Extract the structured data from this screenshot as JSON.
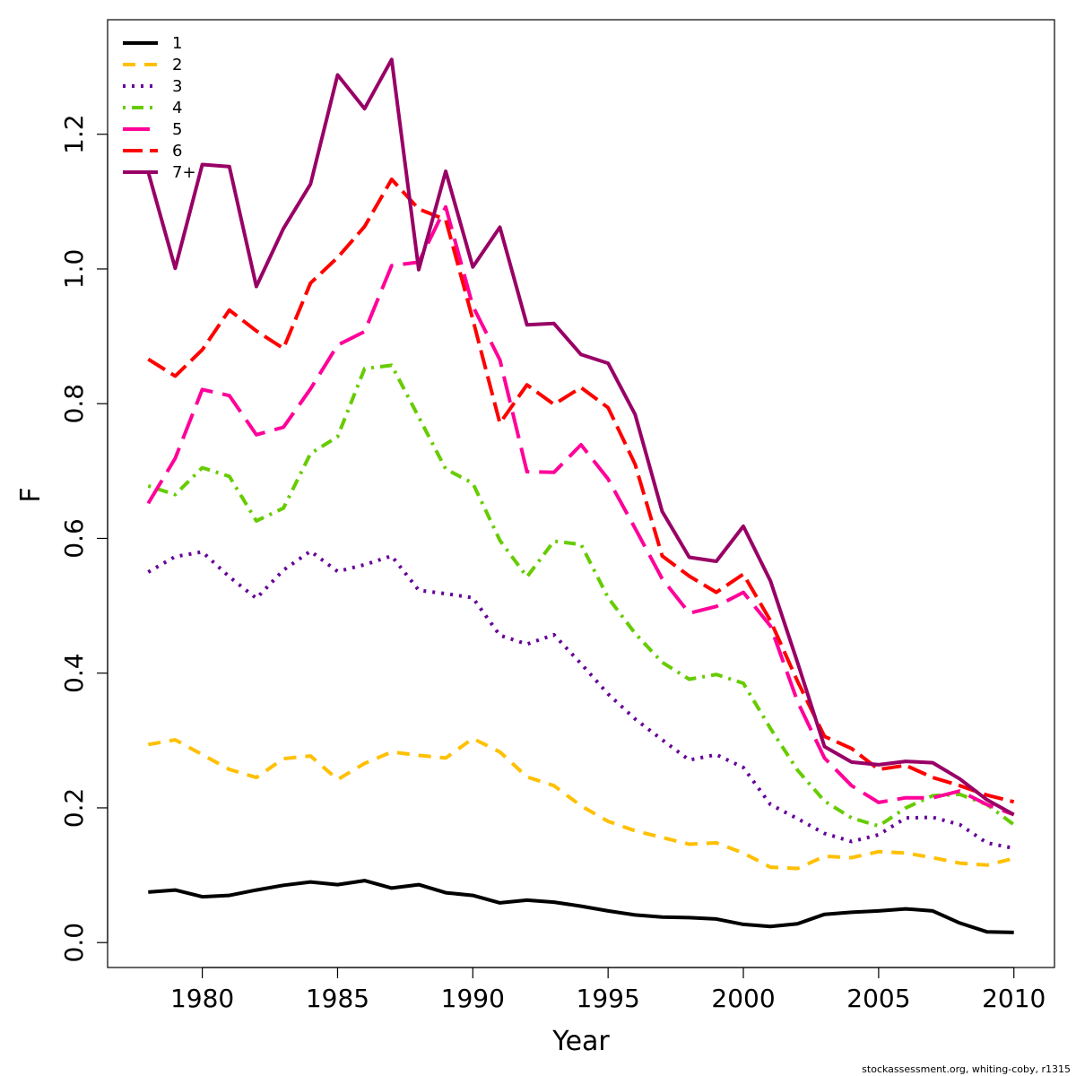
{
  "chart_data": {
    "type": "line",
    "xlabel": "Year",
    "ylabel": "F",
    "xlim": [
      1976.5,
      2011.5
    ],
    "ylim": [
      -0.037,
      1.37
    ],
    "xticks": [
      1980,
      1985,
      1990,
      1995,
      2000,
      2005,
      2010
    ],
    "yticks": [
      0.0,
      0.2,
      0.4,
      0.6,
      0.8,
      1.0,
      1.2
    ],
    "ytick_labels": [
      "0.0",
      "0.2",
      "0.4",
      "0.6",
      "0.8",
      "1.0",
      "1.2"
    ],
    "grid": false,
    "legend_position": "top-left",
    "x": [
      1978,
      1979,
      1980,
      1981,
      1982,
      1983,
      1984,
      1985,
      1986,
      1987,
      1988,
      1989,
      1990,
      1991,
      1992,
      1993,
      1994,
      1995,
      1996,
      1997,
      1998,
      1999,
      2000,
      2001,
      2002,
      2003,
      2004,
      2005,
      2006,
      2007,
      2008,
      2009,
      2010
    ],
    "series": [
      {
        "name": "1",
        "color": "#000000",
        "dash": "",
        "values": [
          0.075,
          0.078,
          0.068,
          0.07,
          0.078,
          0.085,
          0.09,
          0.086,
          0.092,
          0.081,
          0.086,
          0.074,
          0.07,
          0.059,
          0.063,
          0.06,
          0.054,
          0.047,
          0.041,
          0.038,
          0.037,
          0.035,
          0.027,
          0.024,
          0.028,
          0.042,
          0.045,
          0.047,
          0.05,
          0.047,
          0.029,
          0.016,
          0.015
        ]
      },
      {
        "name": "2",
        "color": "#FFC000",
        "dash": "14 10",
        "values": [
          0.294,
          0.301,
          0.279,
          0.257,
          0.245,
          0.273,
          0.277,
          0.242,
          0.266,
          0.283,
          0.278,
          0.274,
          0.303,
          0.283,
          0.246,
          0.233,
          0.203,
          0.18,
          0.166,
          0.156,
          0.146,
          0.148,
          0.133,
          0.112,
          0.11,
          0.128,
          0.126,
          0.135,
          0.133,
          0.126,
          0.118,
          0.115,
          0.125
        ]
      },
      {
        "name": "3",
        "color": "#660099",
        "dash": "3 7",
        "values": [
          0.55,
          0.573,
          0.58,
          0.543,
          0.511,
          0.553,
          0.581,
          0.551,
          0.561,
          0.574,
          0.523,
          0.518,
          0.512,
          0.456,
          0.443,
          0.457,
          0.414,
          0.369,
          0.332,
          0.301,
          0.271,
          0.279,
          0.26,
          0.205,
          0.184,
          0.162,
          0.15,
          0.16,
          0.185,
          0.186,
          0.175,
          0.148,
          0.14
        ]
      },
      {
        "name": "4",
        "color": "#66CC00",
        "dash": "3 7 13 7",
        "values": [
          0.678,
          0.665,
          0.705,
          0.692,
          0.626,
          0.645,
          0.726,
          0.751,
          0.852,
          0.857,
          0.78,
          0.703,
          0.682,
          0.597,
          0.543,
          0.596,
          0.591,
          0.512,
          0.459,
          0.416,
          0.391,
          0.398,
          0.385,
          0.318,
          0.256,
          0.21,
          0.185,
          0.173,
          0.2,
          0.218,
          0.22,
          0.205,
          0.175
        ]
      },
      {
        "name": "5",
        "color": "#FF0099",
        "dash": "30 11",
        "values": [
          0.652,
          0.719,
          0.821,
          0.812,
          0.754,
          0.765,
          0.822,
          0.887,
          0.907,
          1.005,
          1.01,
          1.092,
          0.945,
          0.865,
          0.699,
          0.698,
          0.739,
          0.688,
          0.615,
          0.54,
          0.489,
          0.499,
          0.52,
          0.47,
          0.358,
          0.274,
          0.233,
          0.208,
          0.215,
          0.215,
          0.225,
          0.205,
          0.19
        ]
      },
      {
        "name": "6",
        "color": "#FF0000",
        "dash": "22 8",
        "values": [
          0.866,
          0.841,
          0.88,
          0.939,
          0.908,
          0.882,
          0.979,
          1.017,
          1.063,
          1.133,
          1.089,
          1.073,
          0.925,
          0.771,
          0.828,
          0.799,
          0.824,
          0.794,
          0.71,
          0.574,
          0.544,
          0.52,
          0.547,
          0.478,
          0.388,
          0.306,
          0.288,
          0.257,
          0.263,
          0.245,
          0.233,
          0.219,
          0.209
        ]
      },
      {
        "name": "7+",
        "color": "#990066",
        "dash": "",
        "values": [
          1.144,
          1.001,
          1.155,
          1.152,
          0.974,
          1.06,
          1.126,
          1.288,
          1.238,
          1.311,
          0.999,
          1.145,
          1.003,
          1.062,
          0.917,
          0.919,
          0.873,
          0.86,
          0.784,
          0.64,
          0.572,
          0.566,
          0.618,
          0.537,
          0.416,
          0.291,
          0.268,
          0.264,
          0.269,
          0.267,
          0.243,
          0.212,
          0.19
        ]
      }
    ]
  },
  "credit": "stockassessment.org, whiting-coby, r1315"
}
